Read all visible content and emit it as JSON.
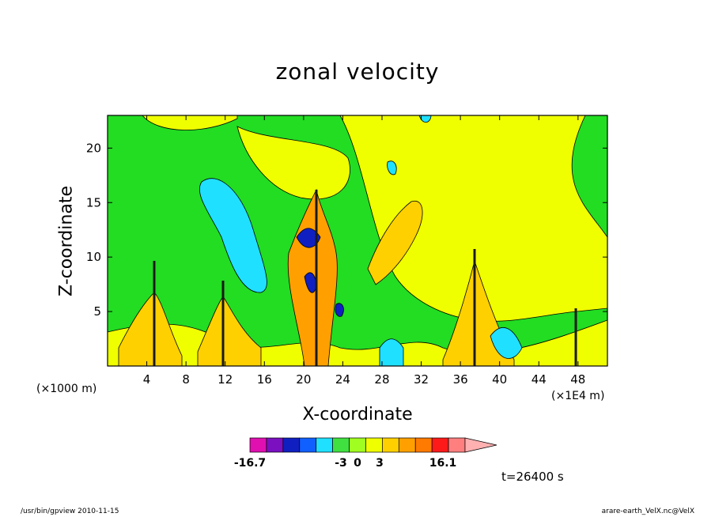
{
  "chart_data": {
    "type": "heatmap",
    "title": "zonal velocity",
    "xlabel": "X-coordinate",
    "ylabel": "Z-coordinate",
    "x_unit_left": "(×1000 m)",
    "x_unit_right": "(×1E4 m)",
    "xticks": [
      4,
      8,
      12,
      16,
      20,
      24,
      28,
      32,
      36,
      40,
      44,
      48
    ],
    "yticks": [
      5,
      10,
      15,
      20
    ],
    "xlim": [
      0,
      51
    ],
    "ylim": [
      0,
      23
    ],
    "colorbar": {
      "tick_labels": [
        "-16.7",
        "-3",
        "0",
        "3",
        "16.1"
      ],
      "min": -16.7,
      "max": 16.1,
      "colors": [
        "#e010b0",
        "#7a10c0",
        "#1020c0",
        "#1060ff",
        "#20e0ff",
        "#40e040",
        "#a0ff20",
        "#f0ff00",
        "#ffd000",
        "#ffa000",
        "#ff7a00",
        "#ff1a1a",
        "#ff7f7f",
        "#ffb0b0"
      ]
    },
    "time": "t=26400 s",
    "background_color": "#22dd22"
  },
  "footer": {
    "left": "/usr/bin/gpview   2010-11-15",
    "right": "arare-earth_VelX.nc@VelX"
  }
}
